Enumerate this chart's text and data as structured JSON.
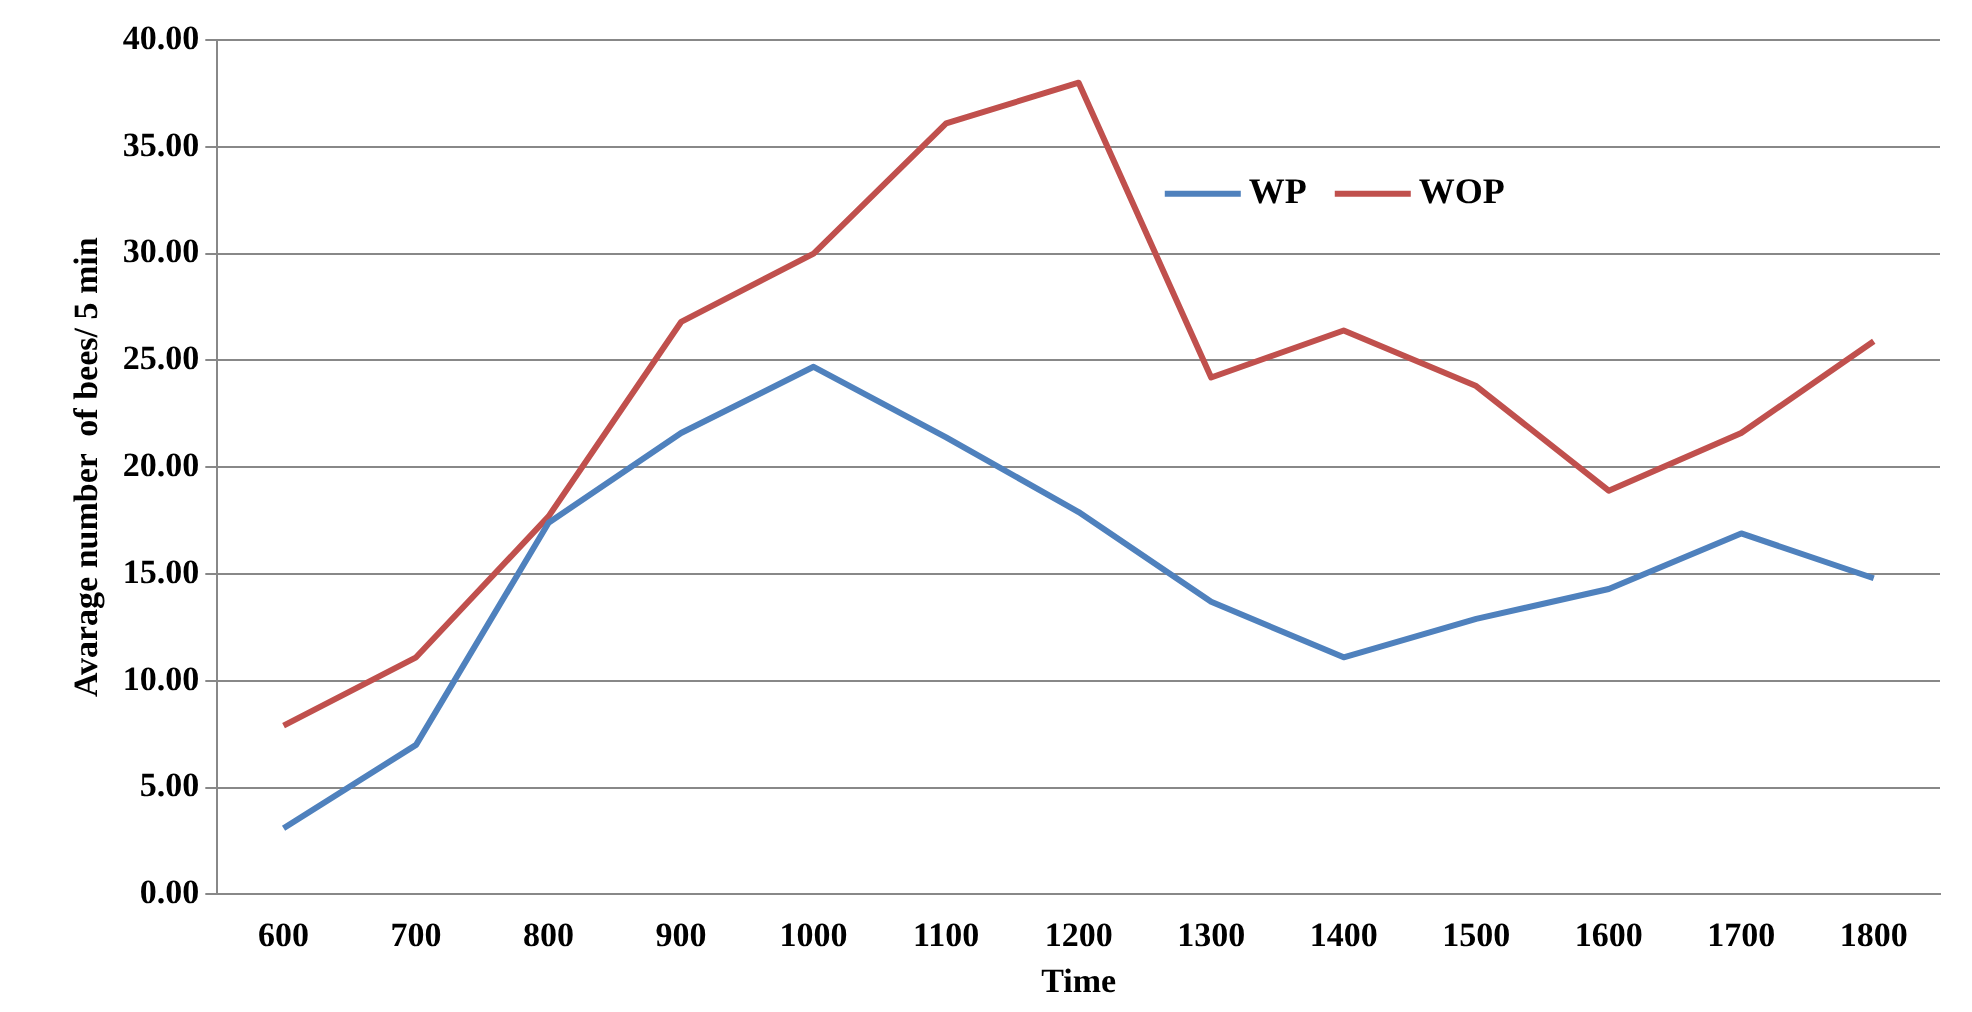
{
  "chart_data": {
    "type": "line",
    "xlabel": "Time",
    "ylabel": "Avarage number  of bees/ 5 min",
    "categories": [
      "600",
      "700",
      "800",
      "900",
      "1000",
      "1100",
      "1200",
      "1300",
      "1400",
      "1500",
      "1600",
      "1700",
      "1800"
    ],
    "series": [
      {
        "name": "WP",
        "color": "#4f81bd",
        "values": [
          3.1,
          7.0,
          17.4,
          21.6,
          24.7,
          21.4,
          17.9,
          13.7,
          11.1,
          12.9,
          14.3,
          16.9,
          14.8
        ]
      },
      {
        "name": "WOP",
        "color": "#c0504d",
        "values": [
          7.9,
          11.1,
          17.7,
          26.8,
          30.0,
          36.1,
          38.0,
          24.2,
          26.4,
          23.8,
          18.9,
          21.6,
          25.9
        ]
      }
    ],
    "ylim": [
      0,
      40
    ],
    "yticks": [
      {
        "value": 0,
        "label": "0.00"
      },
      {
        "value": 5,
        "label": "5.00"
      },
      {
        "value": 10,
        "label": "10.00"
      },
      {
        "value": 15,
        "label": "15.00"
      },
      {
        "value": 20,
        "label": "20.00"
      },
      {
        "value": 25,
        "label": "25.00"
      },
      {
        "value": 30,
        "label": "30.00"
      },
      {
        "value": 35,
        "label": "35.00"
      },
      {
        "value": 40,
        "label": "40.00"
      }
    ],
    "grid": "y",
    "legend": "top right",
    "marker": "none",
    "line_style": "solid"
  }
}
